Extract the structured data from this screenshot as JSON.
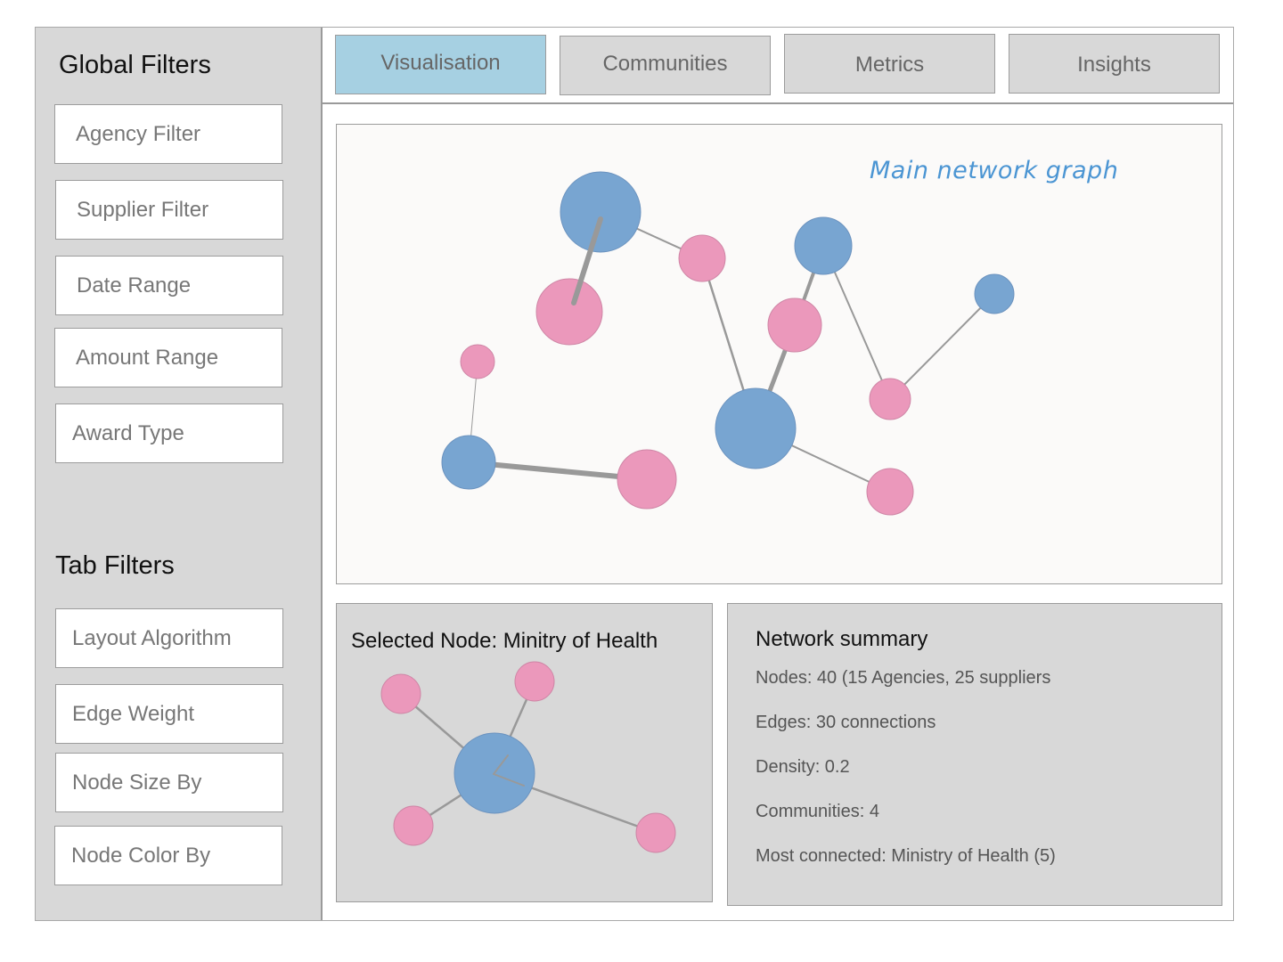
{
  "sidebar": {
    "global_title": "Global Filters",
    "global_filters": [
      "Agency Filter",
      "Supplier Filter",
      "Date Range",
      "Amount Range",
      "Award Type"
    ],
    "tab_title": "Tab Filters",
    "tab_filters": [
      "Layout Algorithm",
      "Edge Weight",
      "Node Size By",
      "Node Color By"
    ]
  },
  "tabs": [
    {
      "label": "Visualisation",
      "active": true
    },
    {
      "label": "Communities",
      "active": false
    },
    {
      "label": "Metrics",
      "active": false
    },
    {
      "label": "Insights",
      "active": false
    }
  ],
  "graph": {
    "annotation": "Main network graph"
  },
  "selected_node": {
    "title": "Selected Node: Minitry of Health"
  },
  "summary": {
    "title": "Network summary",
    "lines": [
      "Nodes: 40 (15 Agencies, 25 suppliers",
      "Edges: 30 connections",
      "Density: 0.2",
      "Communities: 4",
      "Most connected: Ministry of Health (5)"
    ]
  },
  "colors": {
    "agency": "#78a5d1",
    "supplier": "#eb98bb",
    "active_tab": "#a6d0e2",
    "panel": "#d8d8d8",
    "annotation": "#4b95d3"
  }
}
